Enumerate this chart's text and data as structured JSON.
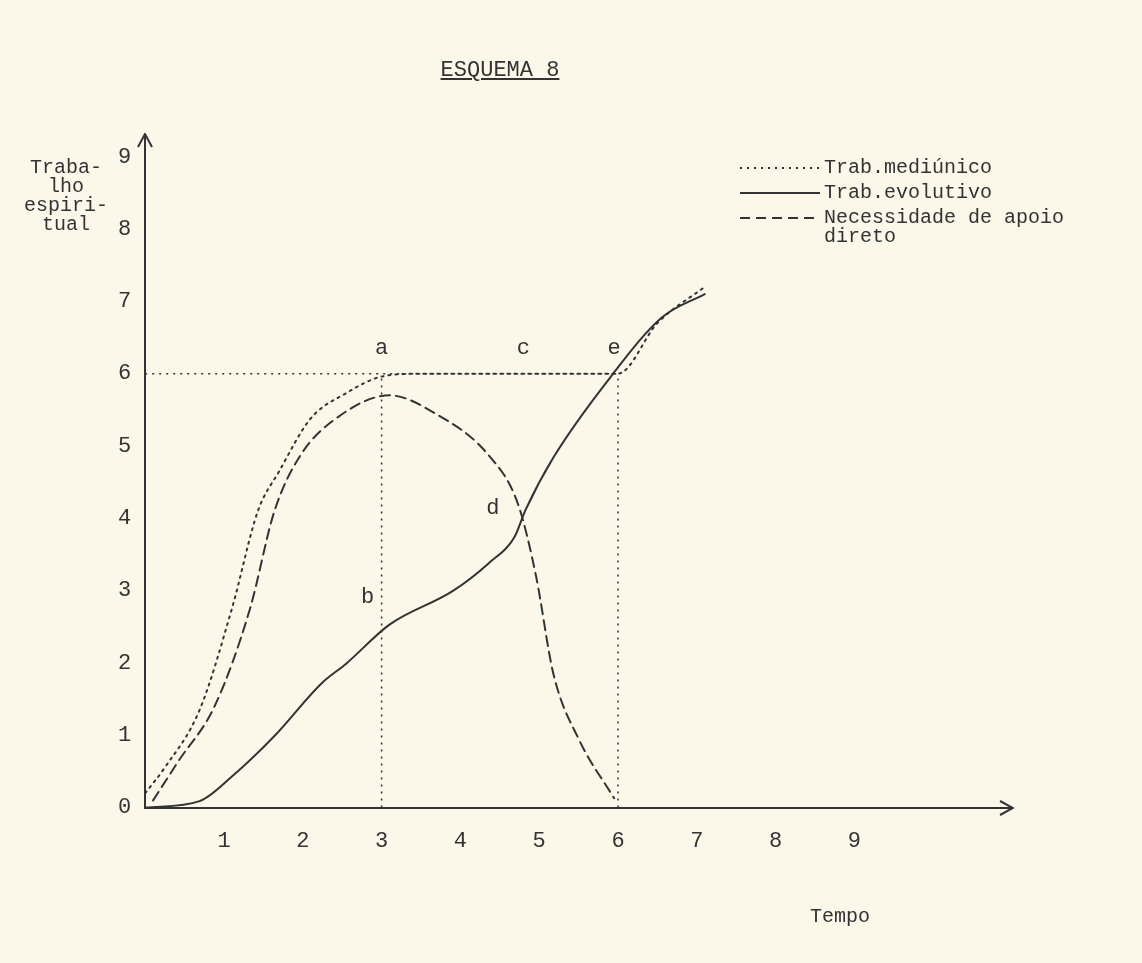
{
  "chart_data": {
    "type": "line",
    "title": "ESQUEMA 8",
    "xlabel": "Tempo",
    "ylabel": "Traba-\nlho\nespiri-\ntual",
    "xlim": [
      0,
      11
    ],
    "ylim": [
      0,
      9.3
    ],
    "xticks": [
      1,
      2,
      3,
      4,
      5,
      6,
      7,
      8,
      9
    ],
    "yticks": [
      0,
      1,
      2,
      3,
      4,
      5,
      6,
      7,
      8,
      9
    ],
    "grid": false,
    "legend": "top right",
    "marker": "none",
    "series": [
      {
        "name": "Trab.mediúnico",
        "color": "#333333",
        "line_style": "dotted",
        "x": [
          0,
          0.24,
          0.69,
          1.1,
          1.43,
          1.7,
          2.1,
          2.55,
          3.0,
          3.5,
          4.0,
          4.5,
          5.0,
          5.5,
          6.0,
          6.5,
          7.1
        ],
        "values": [
          0.2,
          0.54,
          1.35,
          2.75,
          4.1,
          4.65,
          5.38,
          5.73,
          5.96,
          6.0,
          6.0,
          6.0,
          6.0,
          6.0,
          6.0,
          6.7,
          7.2
        ]
      },
      {
        "name": "Trab.evolutivo",
        "color": "#333333",
        "line_style": "solid",
        "x": [
          0,
          0.69,
          1.1,
          1.64,
          2.24,
          2.55,
          3.1,
          3.91,
          4.36,
          4.69,
          4.82,
          5.18,
          5.91,
          6.56,
          7.1
        ],
        "values": [
          0,
          0.09,
          0.43,
          0.99,
          1.72,
          1.99,
          2.53,
          3.0,
          3.38,
          3.75,
          4.1,
          4.84,
          5.96,
          6.78,
          7.1
        ]
      },
      {
        "name": "Necessidade de apoio direto",
        "color": "#333333",
        "line_style": "dashed",
        "x": [
          0.1,
          0.42,
          0.88,
          1.33,
          1.64,
          1.97,
          2.46,
          3.1,
          3.68,
          4.36,
          4.73,
          4.96,
          5.18,
          5.5,
          5.95
        ],
        "values": [
          0.1,
          0.64,
          1.4,
          2.75,
          4.1,
          4.87,
          5.41,
          5.7,
          5.45,
          4.87,
          4.2,
          3.2,
          1.85,
          0.95,
          0.13
        ]
      }
    ],
    "ref_lines": [
      {
        "axis": "y",
        "value": 6,
        "line_style": "dotted"
      },
      {
        "axis": "x",
        "value": 3,
        "line_style": "dotted"
      },
      {
        "axis": "x",
        "value": 6,
        "line_style": "dotted"
      }
    ],
    "annotations": [
      {
        "text": "a",
        "x": 3,
        "y": 6
      },
      {
        "text": "c",
        "x": 4.8,
        "y": 6
      },
      {
        "text": "e",
        "x": 5.95,
        "y": 6
      },
      {
        "text": "b",
        "x": 3.1,
        "y": 2.53
      },
      {
        "text": "d",
        "x": 4.69,
        "y": 3.75
      }
    ]
  }
}
